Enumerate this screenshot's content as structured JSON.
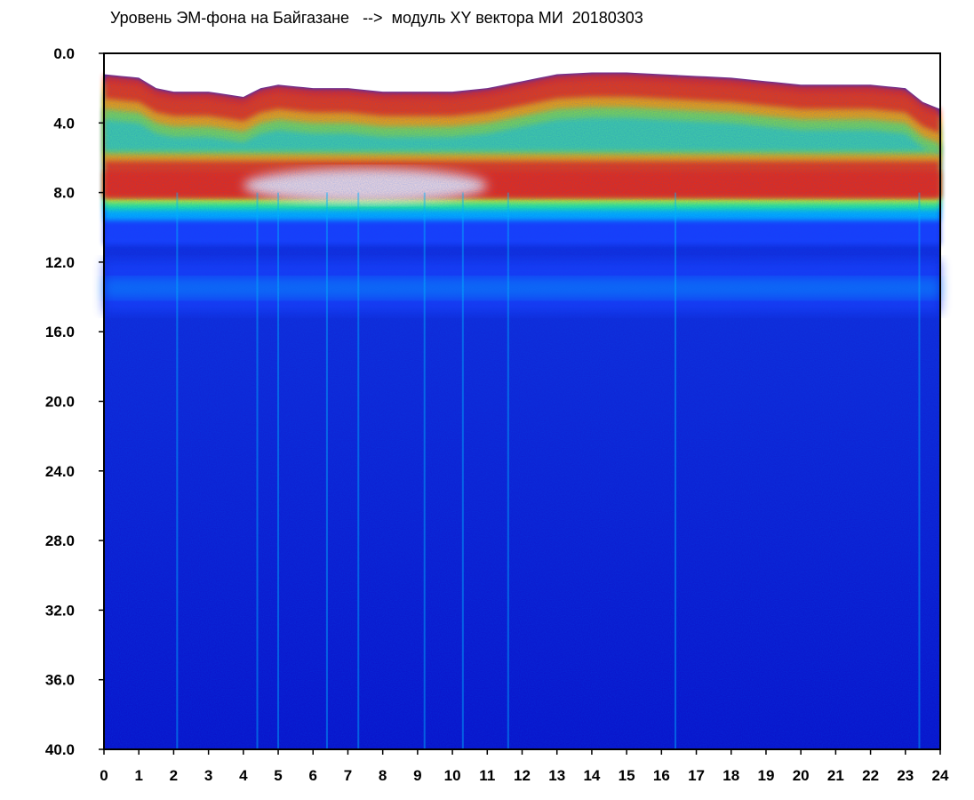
{
  "chart_data": {
    "type": "heatmap",
    "title": "Уровень ЭМ-фона на Байгазане   -->  модуль XY вектора МИ  20180303",
    "xlabel": "",
    "ylabel": "",
    "x_ticks": [
      "0",
      "1",
      "2",
      "3",
      "4",
      "5",
      "6",
      "7",
      "8",
      "9",
      "10",
      "11",
      "12",
      "13",
      "14",
      "15",
      "16",
      "17",
      "18",
      "19",
      "20",
      "21",
      "22",
      "23",
      "24"
    ],
    "y_ticks": [
      "0.0",
      "4.0",
      "8.0",
      "12.0",
      "16.0",
      "20.0",
      "24.0",
      "28.0",
      "32.0",
      "36.0",
      "40.0"
    ],
    "xlim": [
      0,
      24
    ],
    "ylim": [
      0,
      40
    ],
    "y_inverted": true,
    "grid": false,
    "colormap": [
      "#0a0ad2",
      "#1a3cff",
      "#00c8ff",
      "#30ff80",
      "#ffff00",
      "#ff2000",
      "#ffffff"
    ],
    "top_edge_y": [
      [
        0,
        1.2
      ],
      [
        0.5,
        1.3
      ],
      [
        1,
        1.4
      ],
      [
        1.5,
        2.0
      ],
      [
        2,
        2.2
      ],
      [
        3,
        2.2
      ],
      [
        4,
        2.5
      ],
      [
        4.5,
        2.0
      ],
      [
        5,
        1.8
      ],
      [
        6,
        2.0
      ],
      [
        7,
        2.0
      ],
      [
        8,
        2.2
      ],
      [
        9,
        2.2
      ],
      [
        10,
        2.2
      ],
      [
        11,
        2.0
      ],
      [
        12,
        1.6
      ],
      [
        13,
        1.2
      ],
      [
        14,
        1.1
      ],
      [
        15,
        1.1
      ],
      [
        16,
        1.2
      ],
      [
        17,
        1.3
      ],
      [
        18,
        1.4
      ],
      [
        19,
        1.6
      ],
      [
        20,
        1.8
      ],
      [
        21,
        1.8
      ],
      [
        22,
        1.8
      ],
      [
        23,
        2.0
      ],
      [
        23.5,
        2.8
      ],
      [
        24,
        3.2
      ]
    ],
    "white_band": {
      "x_range": [
        4,
        11
      ],
      "center_y": 7.6,
      "half_width": 1.0
    },
    "secondary_band_y": 13.5,
    "bright_streaks_x": [
      2.1,
      4.4,
      5.0,
      6.4,
      7.3,
      9.2,
      10.3,
      11.6,
      16.4,
      23.4
    ]
  }
}
